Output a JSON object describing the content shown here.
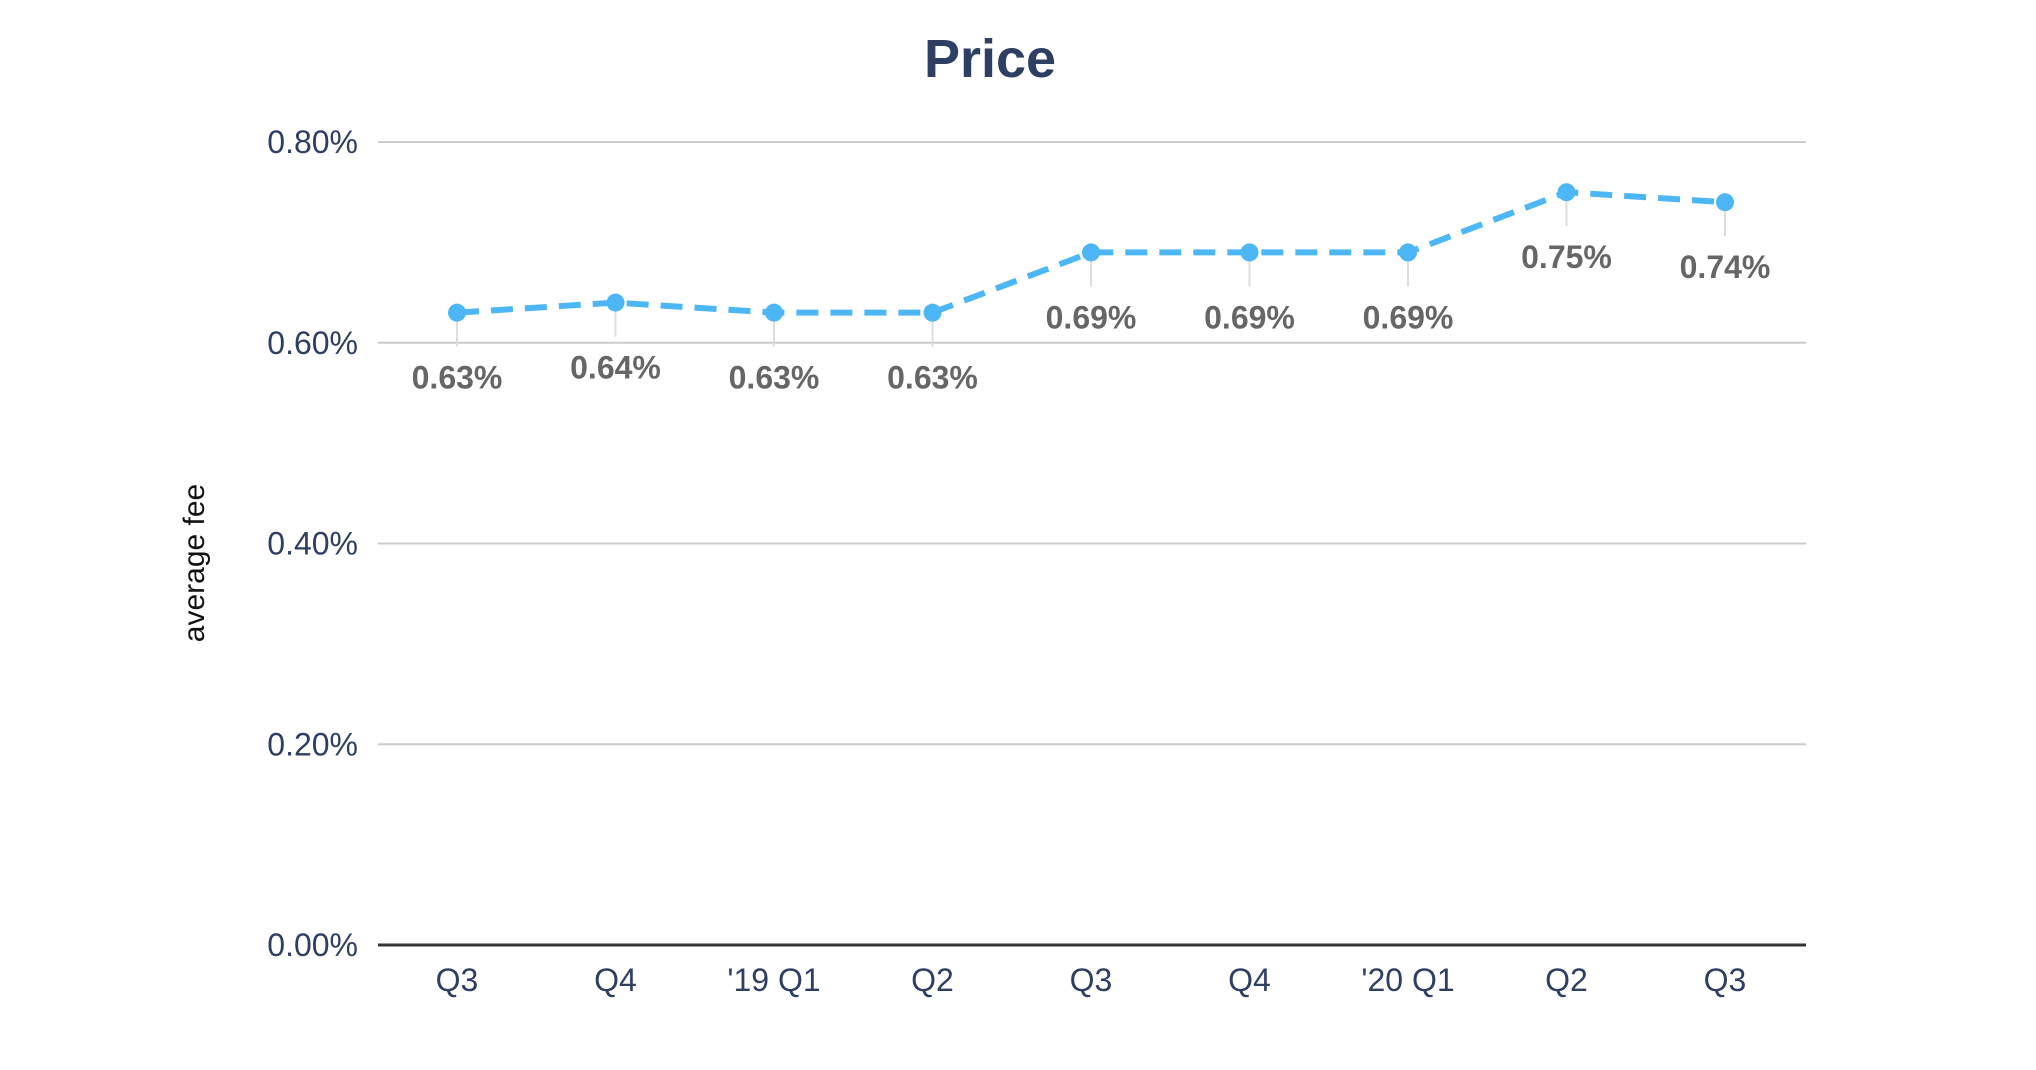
{
  "chart_data": {
    "type": "line",
    "title": "Price",
    "xlabel": "",
    "ylabel": "average fee",
    "categories": [
      "Q3",
      "Q4",
      "'19 Q1",
      "Q2",
      "Q3",
      "Q4",
      "'20 Q1",
      "Q2",
      "Q3"
    ],
    "series": [
      {
        "values": [
          0.63,
          0.64,
          0.63,
          0.63,
          0.69,
          0.69,
          0.69,
          0.75,
          0.74
        ],
        "labels": [
          "0.63%",
          "0.64%",
          "0.63%",
          "0.63%",
          "0.69%",
          "0.69%",
          "0.69%",
          "0.75%",
          "0.74%"
        ],
        "label_position": [
          "below",
          "below",
          "below",
          "below",
          "below",
          "below",
          "below",
          "below",
          "below"
        ],
        "color": "#4db6f5",
        "line_style": "dashed"
      }
    ],
    "yticks": [
      {
        "value": 0.0,
        "label": "0.00%"
      },
      {
        "value": 0.2,
        "label": "0.20%"
      },
      {
        "value": 0.4,
        "label": "0.40%"
      },
      {
        "value": 0.6,
        "label": "0.60%"
      },
      {
        "value": 0.8,
        "label": "0.80%"
      }
    ],
    "ylim": [
      0,
      0.8
    ],
    "grid": true,
    "legend": "none",
    "colors": {
      "title": "#2e3f63",
      "tick_text": "#2e3f63",
      "data_label": "#666666",
      "grid": "#cccccc",
      "baseline": "#333333"
    }
  }
}
